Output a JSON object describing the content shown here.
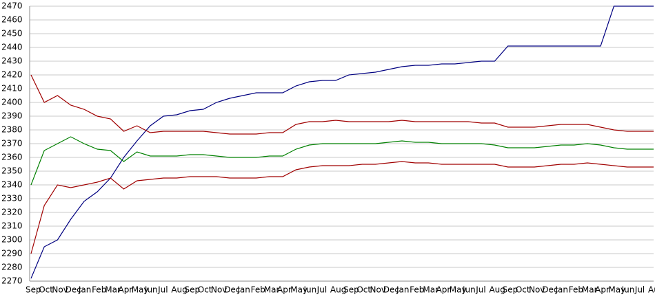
{
  "chart_data": {
    "type": "line",
    "categories": [
      "Sep",
      "Oct",
      "Nov",
      "Dec",
      "Jan",
      "Feb",
      "Mar",
      "Apr",
      "May",
      "Jun",
      "Jul",
      "Aug",
      "Sep",
      "Oct",
      "Nov",
      "Dec",
      "Jan",
      "Feb",
      "Mar",
      "Apr",
      "May",
      "Jun",
      "Jul",
      "Aug",
      "Sep",
      "Oct",
      "Nov",
      "Dec",
      "Jan",
      "Feb",
      "Mar",
      "Apr",
      "May",
      "Jun",
      "Jul",
      "Aug",
      "Sep",
      "Oct",
      "Nov",
      "Dec",
      "Jan",
      "Feb",
      "Mar",
      "Apr",
      "May",
      "Jun",
      "Jul",
      "Aug"
    ],
    "series": [
      {
        "color": "#000080",
        "values": [
          2272,
          2295,
          2300,
          2315,
          2328,
          2335,
          2345,
          2360,
          2372,
          2383,
          2390,
          2391,
          2394,
          2395,
          2400,
          2403,
          2405,
          2407,
          2407,
          2407,
          2412,
          2415,
          2416,
          2416,
          2420,
          2421,
          2422,
          2424,
          2426,
          2427,
          2427,
          2428,
          2428,
          2429,
          2430,
          2430,
          2441,
          2441,
          2441,
          2441,
          2441,
          2441,
          2441,
          2441,
          2470,
          2470,
          2470,
          2470
        ]
      },
      {
        "color": "#a00000",
        "values": [
          2420,
          2400,
          2405,
          2398,
          2395,
          2390,
          2388,
          2379,
          2383,
          2378,
          2379,
          2379,
          2379,
          2379,
          2378,
          2377,
          2377,
          2377,
          2378,
          2378,
          2384,
          2386,
          2386,
          2387,
          2386,
          2386,
          2386,
          2386,
          2387,
          2386,
          2386,
          2386,
          2386,
          2386,
          2385,
          2385,
          2382,
          2382,
          2382,
          2383,
          2384,
          2384,
          2384,
          2382,
          2380,
          2379,
          2379,
          2379
        ]
      },
      {
        "color": "#008000",
        "values": [
          2340,
          2365,
          2370,
          2375,
          2370,
          2366,
          2365,
          2357,
          2364,
          2361,
          2361,
          2361,
          2362,
          2362,
          2361,
          2360,
          2360,
          2360,
          2361,
          2361,
          2366,
          2369,
          2370,
          2370,
          2370,
          2370,
          2370,
          2371,
          2372,
          2371,
          2371,
          2370,
          2370,
          2370,
          2370,
          2369,
          2367,
          2367,
          2367,
          2368,
          2369,
          2369,
          2370,
          2369,
          2367,
          2366,
          2366,
          2366
        ]
      },
      {
        "color": "#a00000",
        "values": [
          2290,
          2325,
          2340,
          2338,
          2340,
          2342,
          2345,
          2337,
          2343,
          2344,
          2345,
          2345,
          2346,
          2346,
          2346,
          2345,
          2345,
          2345,
          2346,
          2346,
          2351,
          2353,
          2354,
          2354,
          2354,
          2355,
          2355,
          2356,
          2357,
          2356,
          2356,
          2355,
          2355,
          2355,
          2355,
          2355,
          2353,
          2353,
          2353,
          2354,
          2355,
          2355,
          2356,
          2355,
          2354,
          2353,
          2353,
          2353
        ]
      }
    ],
    "ylim": [
      2270,
      2470
    ],
    "yticks": [
      2270,
      2280,
      2290,
      2300,
      2310,
      2320,
      2330,
      2340,
      2350,
      2360,
      2370,
      2380,
      2390,
      2400,
      2410,
      2420,
      2430,
      2440,
      2450,
      2460,
      2470
    ],
    "grid": true
  }
}
